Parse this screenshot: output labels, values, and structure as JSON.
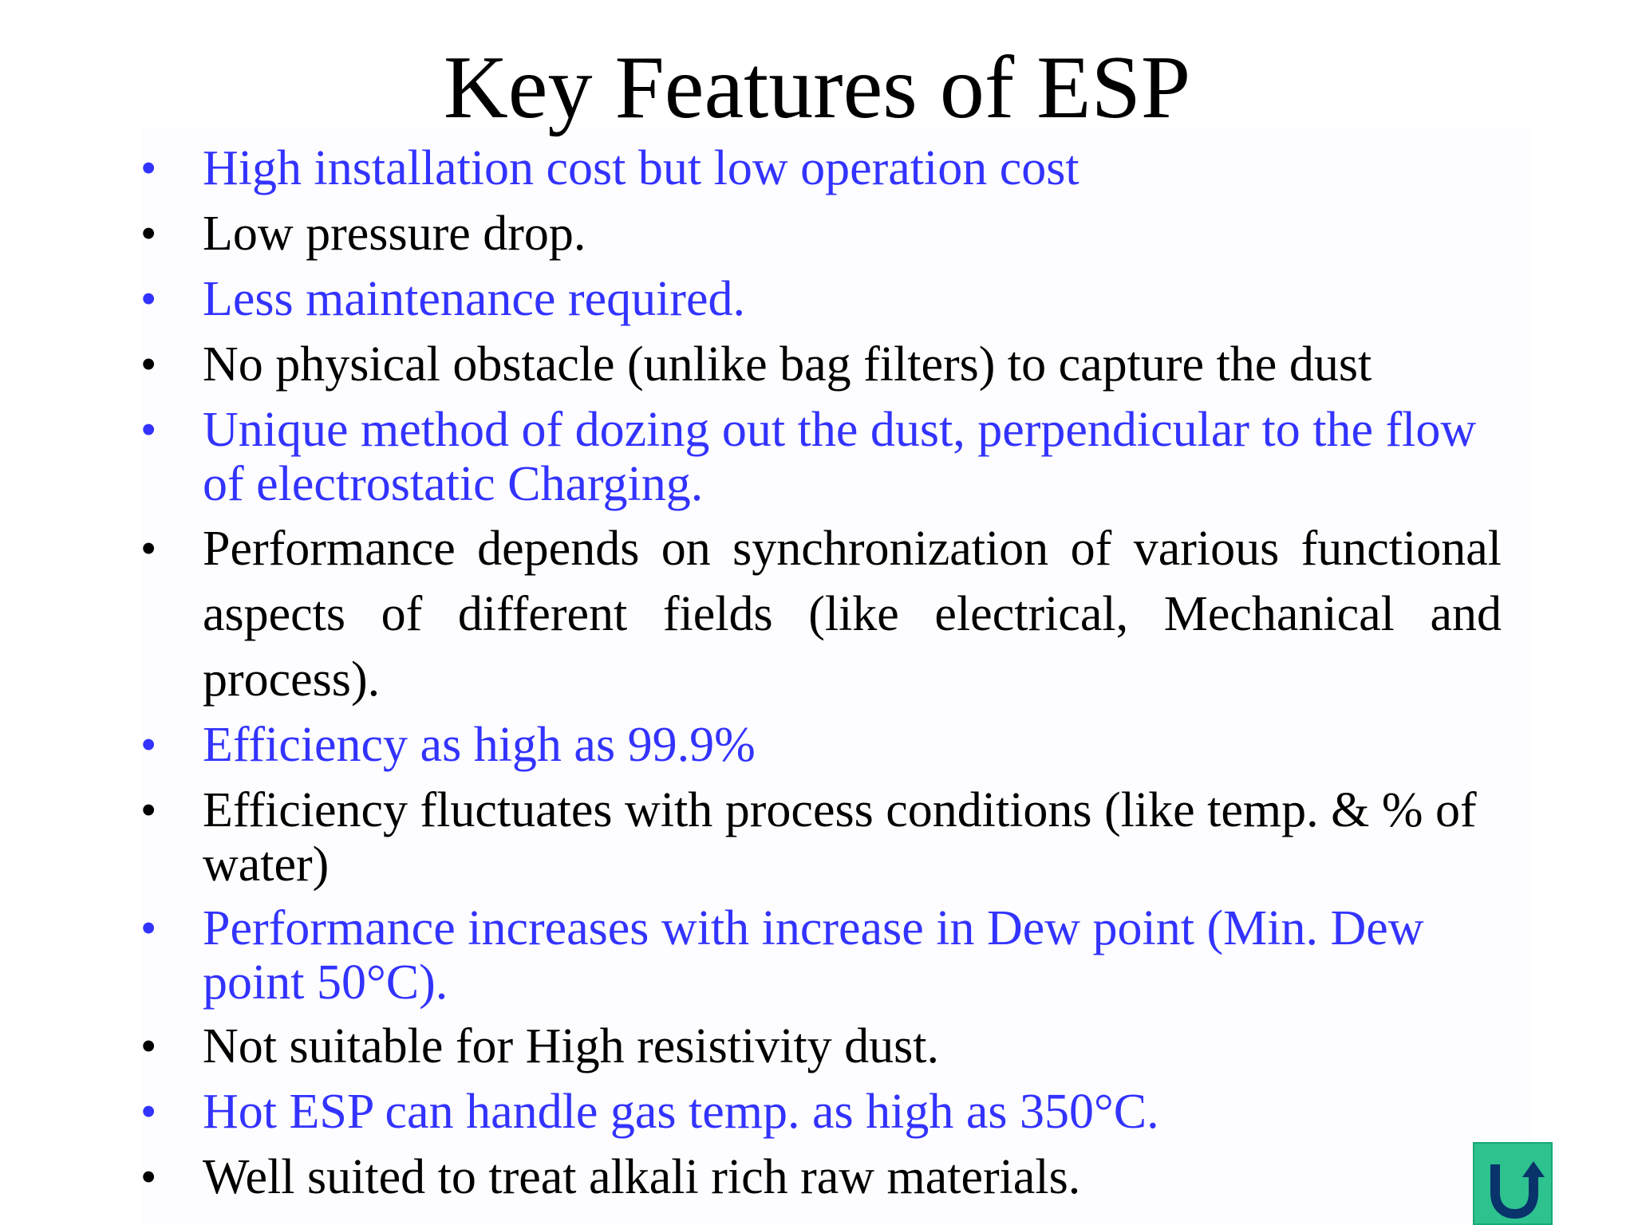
{
  "slide": {
    "title": "Key Features of ESP",
    "bullet_symbol": "•",
    "bullets": [
      {
        "text": "High installation cost but low operation cost",
        "color": "#3333ff"
      },
      {
        "text": "Low pressure drop.",
        "color": "#000000"
      },
      {
        "text": "Less maintenance required.",
        "color": "#3333ff"
      },
      {
        "text": "No physical obstacle (unlike bag filters) to capture the dust",
        "color": "#000000"
      },
      {
        "text": "Unique method of dozing out the dust, perpendicular to the flow of electrostatic Charging.",
        "color": "#3333ff"
      },
      {
        "text": "Performance depends on synchronization of various functional aspects of different fields (like electrical, Mechanical and process).",
        "color": "#000000"
      },
      {
        "text": "Efficiency as high as 99.9%",
        "color": "#3333ff"
      },
      {
        "text": "Efficiency fluctuates with process conditions (like temp. & % of water)",
        "color": "#000000"
      },
      {
        "text": "Performance increases with increase in Dew point (Min. Dew point 50°C).",
        "color": "#3333ff"
      },
      {
        "text": "Not suitable for High resistivity dust.",
        "color": "#000000"
      },
      {
        "text": "Hot ESP can handle gas temp. as high as 350°C.",
        "color": "#3333ff"
      },
      {
        "text": "Well suited to treat alkali rich raw materials.",
        "color": "#000000"
      }
    ]
  },
  "navigation": {
    "return_icon": "u-turn-arrow-icon",
    "button_color": "#2ec28f"
  }
}
